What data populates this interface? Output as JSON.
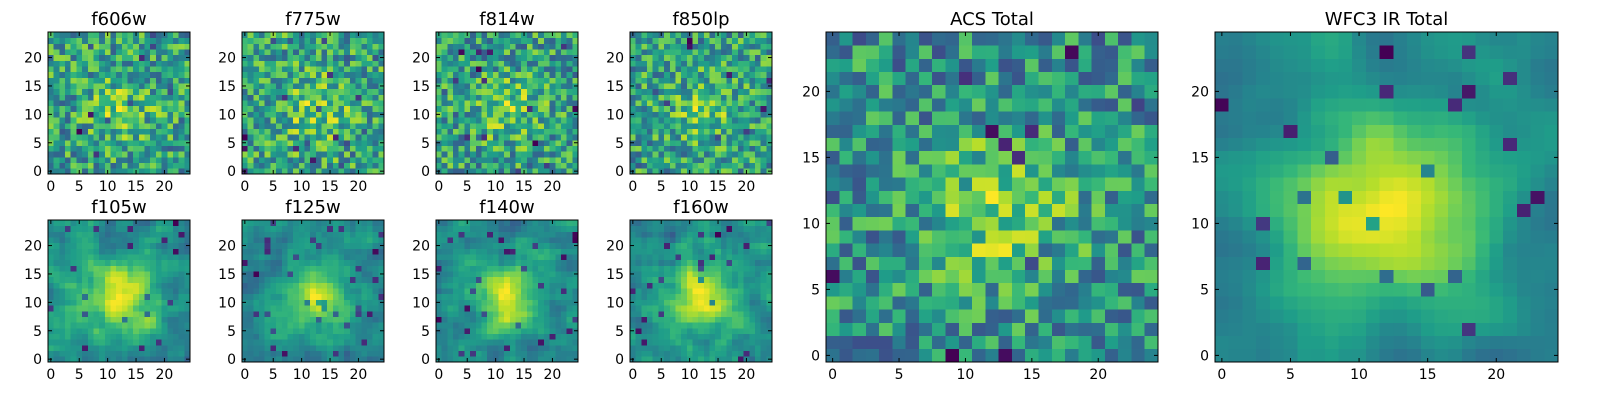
{
  "chart_data": [
    {
      "type": "heatmap",
      "title": "f606w",
      "pattern": "noise",
      "seed": 11,
      "xlim": [
        0,
        24
      ],
      "ylim": [
        0,
        24
      ],
      "xticks": [
        "0",
        "5",
        "10",
        "15",
        "20"
      ],
      "yticks": [
        "0",
        "5",
        "10",
        "15",
        "20"
      ]
    },
    {
      "type": "heatmap",
      "title": "f775w",
      "pattern": "noise",
      "seed": 23,
      "xlim": [
        0,
        24
      ],
      "ylim": [
        0,
        24
      ],
      "xticks": [
        "0",
        "5",
        "10",
        "15",
        "20"
      ],
      "yticks": [
        "0",
        "5",
        "10",
        "15",
        "20"
      ]
    },
    {
      "type": "heatmap",
      "title": "f814w",
      "pattern": "noise",
      "seed": 37,
      "xlim": [
        0,
        24
      ],
      "ylim": [
        0,
        24
      ],
      "xticks": [
        "0",
        "5",
        "10",
        "15",
        "20"
      ],
      "yticks": [
        "0",
        "5",
        "10",
        "15",
        "20"
      ]
    },
    {
      "type": "heatmap",
      "title": "f850lp",
      "pattern": "noise",
      "seed": 41,
      "xlim": [
        0,
        24
      ],
      "ylim": [
        0,
        24
      ],
      "xticks": [
        "0",
        "5",
        "10",
        "15",
        "20"
      ],
      "yticks": [
        "0",
        "5",
        "10",
        "15",
        "20"
      ]
    },
    {
      "type": "heatmap",
      "title": "f105w",
      "pattern": "blob",
      "seed": 53,
      "xlim": [
        0,
        24
      ],
      "ylim": [
        0,
        24
      ],
      "xticks": [
        "0",
        "5",
        "10",
        "15",
        "20"
      ],
      "yticks": [
        "0",
        "5",
        "10",
        "15",
        "20"
      ]
    },
    {
      "type": "heatmap",
      "title": "f125w",
      "pattern": "blob",
      "seed": 67,
      "xlim": [
        0,
        24
      ],
      "ylim": [
        0,
        24
      ],
      "xticks": [
        "0",
        "5",
        "10",
        "15",
        "20"
      ],
      "yticks": [
        "0",
        "5",
        "10",
        "15",
        "20"
      ]
    },
    {
      "type": "heatmap",
      "title": "f140w",
      "pattern": "blob",
      "seed": 71,
      "xlim": [
        0,
        24
      ],
      "ylim": [
        0,
        24
      ],
      "xticks": [
        "0",
        "5",
        "10",
        "15",
        "20"
      ],
      "yticks": [
        "0",
        "5",
        "10",
        "15",
        "20"
      ]
    },
    {
      "type": "heatmap",
      "title": "f160w",
      "pattern": "blob",
      "seed": 89,
      "xlim": [
        0,
        24
      ],
      "ylim": [
        0,
        24
      ],
      "xticks": [
        "0",
        "5",
        "10",
        "15",
        "20"
      ],
      "yticks": [
        "0",
        "5",
        "10",
        "15",
        "20"
      ]
    },
    {
      "type": "heatmap",
      "title": "ACS Total",
      "pattern": "total",
      "seed": 97,
      "xlim": [
        0,
        24
      ],
      "ylim": [
        0,
        24
      ],
      "xticks": [
        "0",
        "5",
        "10",
        "15",
        "20"
      ],
      "yticks": [
        "0",
        "5",
        "10",
        "15",
        "20"
      ]
    },
    {
      "type": "heatmap",
      "title": "WFC3 IR Total",
      "pattern": "smooth",
      "seed": 101,
      "xlim": [
        0,
        24
      ],
      "ylim": [
        0,
        24
      ],
      "xticks": [
        "0",
        "5",
        "10",
        "15",
        "20"
      ],
      "yticks": [
        "0",
        "5",
        "10",
        "15",
        "20"
      ]
    }
  ],
  "colormap": "viridis",
  "colors": {
    "low": "#440154",
    "mid": "#21908d",
    "high": "#fde725"
  }
}
